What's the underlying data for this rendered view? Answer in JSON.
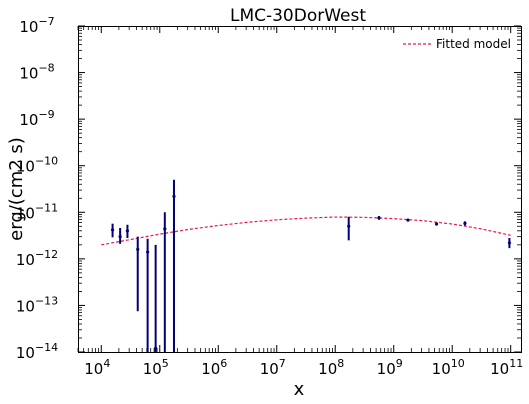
{
  "chart_data": {
    "type": "scatter",
    "title": "LMC-30DorWest",
    "xlabel": "x",
    "ylabel": "erg/(cm2 s)",
    "xscale": "log",
    "yscale": "log",
    "xlim": [
      4000,
      150000000000
    ],
    "ylim": [
      1e-14,
      1e-07
    ],
    "x_ticks": [
      {
        "value": 10000,
        "base": "10",
        "exp": "4"
      },
      {
        "value": 100000,
        "base": "10",
        "exp": "5"
      },
      {
        "value": 1000000,
        "base": "10",
        "exp": "6"
      },
      {
        "value": 10000000,
        "base": "10",
        "exp": "7"
      },
      {
        "value": 100000000,
        "base": "10",
        "exp": "8"
      },
      {
        "value": 1000000000,
        "base": "10",
        "exp": "9"
      },
      {
        "value": 10000000000,
        "base": "10",
        "exp": "10"
      },
      {
        "value": 100000000000,
        "base": "10",
        "exp": "11"
      }
    ],
    "y_ticks": [
      {
        "value": 1e-14,
        "base": "10",
        "exp": "−14"
      },
      {
        "value": 1e-13,
        "base": "10",
        "exp": "−13"
      },
      {
        "value": 1e-12,
        "base": "10",
        "exp": "−12"
      },
      {
        "value": 1e-11,
        "base": "10",
        "exp": "−11"
      },
      {
        "value": 1e-10,
        "base": "10",
        "exp": "−10"
      },
      {
        "value": 1e-09,
        "base": "10",
        "exp": "−9"
      },
      {
        "value": 1e-08,
        "base": "10",
        "exp": "−8"
      },
      {
        "value": 1e-07,
        "base": "10",
        "exp": "−7"
      }
    ],
    "grid": false,
    "legend_position": "top-right",
    "series": [
      {
        "name": "Fitted model",
        "kind": "line",
        "style": "dashed",
        "color": "#e8194b",
        "x": [
          10000,
          31600,
          100000,
          316000,
          1000000,
          3160000,
          10000000,
          31600000,
          100000000,
          316000000,
          1000000000,
          3160000000,
          10000000000,
          31600000000,
          100000000000
        ],
        "y": [
          2e-12,
          2.6e-12,
          3.4e-12,
          4.3e-12,
          5.2e-12,
          6.1e-12,
          6.9e-12,
          7.5e-12,
          7.9e-12,
          7.8e-12,
          7.3e-12,
          6.6e-12,
          5.6e-12,
          4.4e-12,
          3.2e-12
        ]
      },
      {
        "kind": "errorbar",
        "color": "#00007a",
        "points": [
          {
            "x": 15600,
            "y": 4.2e-12,
            "ylo": 2.9e-12,
            "yhi": 5.7e-12
          },
          {
            "x": 21000,
            "y": 3e-12,
            "ylo": 2.1e-12,
            "yhi": 4.6e-12
          },
          {
            "x": 28000,
            "y": 4e-12,
            "ylo": 2.8e-12,
            "yhi": 5.4e-12
          },
          {
            "x": 42000,
            "y": 1.6e-12,
            "ylo": 7.5e-14,
            "yhi": 3e-12
          },
          {
            "x": 62000,
            "y": 1.4e-12,
            "ylo": 1e-14,
            "yhi": 2.7e-12
          },
          {
            "x": 85000,
            "y": 1.2e-14,
            "ylo": 1e-14,
            "yhi": 2e-12
          },
          {
            "x": 122000,
            "y": 4.4e-12,
            "ylo": 1e-14,
            "yhi": 1e-11
          },
          {
            "x": 175000,
            "y": 2.2e-11,
            "ylo": 1e-14,
            "yhi": 5e-11
          },
          {
            "x": 170000000,
            "y": 5e-12,
            "ylo": 2.5e-12,
            "yhi": 8e-12
          },
          {
            "x": 560000000,
            "y": 7.6e-12,
            "ylo": 6.9e-12,
            "yhi": 8.3e-12
          },
          {
            "x": 1750000000,
            "y": 6.8e-12,
            "ylo": 6.4e-12,
            "yhi": 7.2e-12
          },
          {
            "x": 5400000000,
            "y": 5.6e-12,
            "ylo": 5.2e-12,
            "yhi": 6e-12
          },
          {
            "x": 16500000000,
            "y": 5.8e-12,
            "ylo": 5.2e-12,
            "yhi": 6.4e-12
          },
          {
            "x": 95000000000,
            "y": 2.2e-12,
            "ylo": 1.7e-12,
            "yhi": 2.8e-12
          }
        ]
      }
    ]
  }
}
